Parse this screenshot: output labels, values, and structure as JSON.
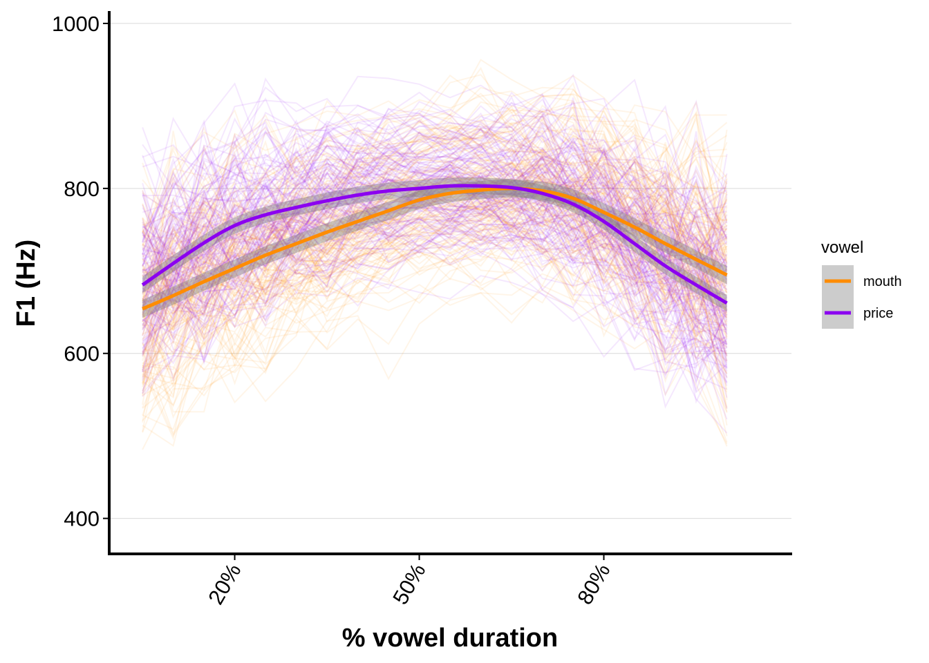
{
  "chart_data": {
    "type": "line",
    "xlabel": "% vowel duration",
    "ylabel": "F1 (Hz)",
    "x_ticks": [
      {
        "value": 20,
        "label": "20%"
      },
      {
        "value": 50,
        "label": "50%"
      },
      {
        "value": 80,
        "label": "80%"
      }
    ],
    "y_ticks": [
      {
        "value": 400,
        "label": "400"
      },
      {
        "value": 600,
        "label": "600"
      },
      {
        "value": 800,
        "label": "800"
      },
      {
        "value": 1000,
        "label": "1000"
      }
    ],
    "xlim": [
      -0.4,
      110.5
    ],
    "ylim": [
      357,
      1015
    ],
    "grid": "horizontal-major",
    "legend": {
      "title": "vowel",
      "position": "right",
      "entries": [
        {
          "label": "mouth",
          "color": "#FF8C00"
        },
        {
          "label": "price",
          "color": "#8B00F0"
        }
      ]
    },
    "x": [
      5,
      10,
      15,
      20,
      25,
      30,
      35,
      40,
      45,
      50,
      55,
      60,
      65,
      70,
      75,
      80,
      85,
      90,
      95,
      100
    ],
    "series": [
      {
        "name": "mouth",
        "color": "#FF8C00",
        "values": [
          654,
          670,
          687,
          703,
          719,
          733,
          747,
          760,
          773,
          786,
          794,
          798,
          800,
          797,
          788,
          771,
          753,
          733,
          714,
          695
        ],
        "band": 11
      },
      {
        "name": "price",
        "color": "#8B00F0",
        "values": [
          683,
          709,
          734,
          755,
          768,
          777,
          785,
          792,
          797,
          800,
          803,
          803,
          801,
          794,
          781,
          760,
          733,
          706,
          683,
          661
        ],
        "band": 10
      }
    ],
    "background_tokens": {
      "mouth_count": 140,
      "price_count": 120,
      "opacity": 0.09
    }
  }
}
